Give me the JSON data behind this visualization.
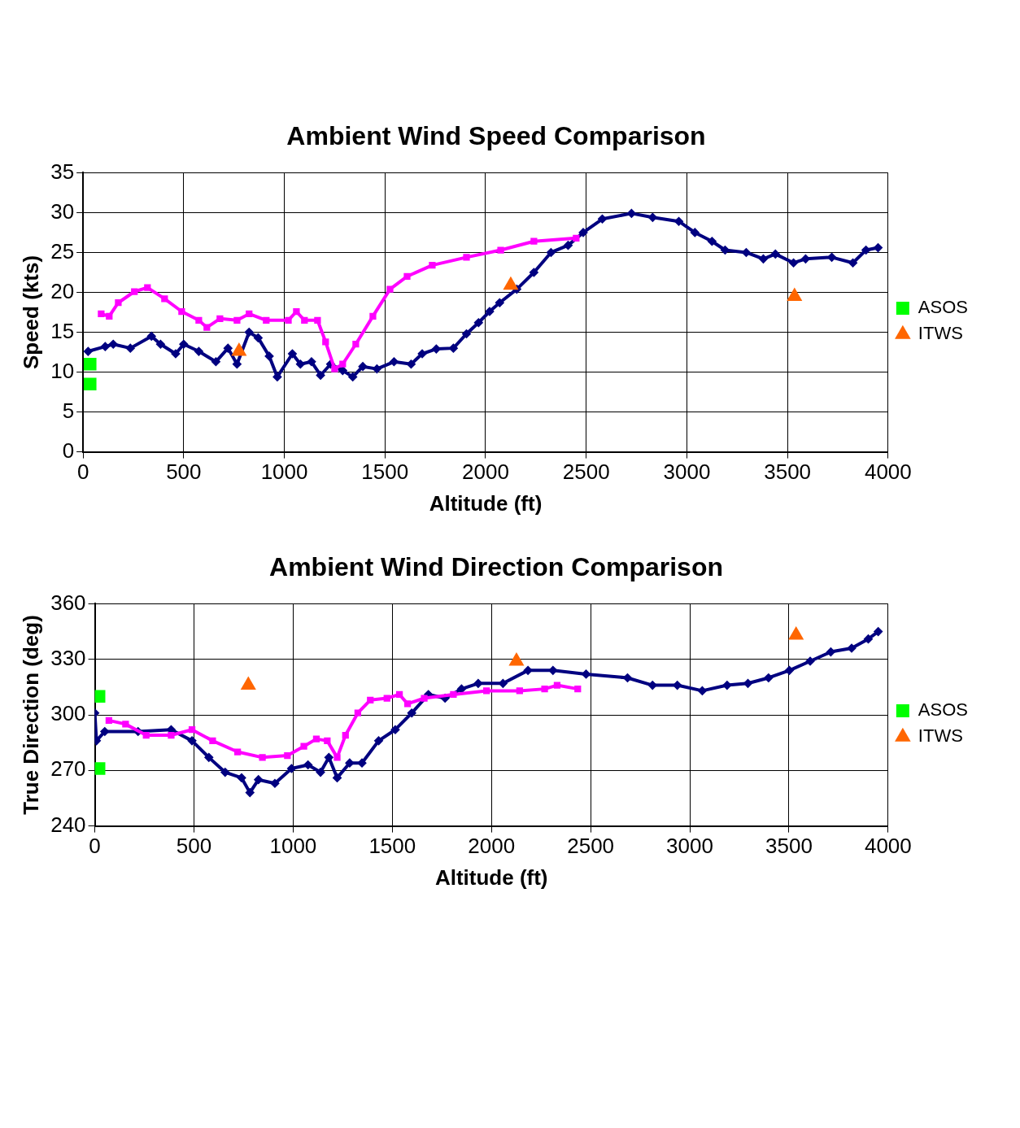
{
  "chart_data": [
    {
      "type": "line",
      "title": "Ambient Wind Speed Comparison",
      "xlabel": "Altitude (ft)",
      "ylabel": "Speed (kts)",
      "xlim": [
        0,
        4000
      ],
      "xticks": [
        0,
        500,
        1000,
        1500,
        2000,
        2500,
        3000,
        3500,
        4000
      ],
      "ylim": [
        0,
        35
      ],
      "yticks": [
        0,
        5,
        10,
        15,
        20,
        25,
        30,
        35
      ],
      "grid": true,
      "legend": "right",
      "series": [
        {
          "marker": "diamond",
          "color": "#000080",
          "x": [
            25,
            110,
            150,
            235,
            340,
            385,
            460,
            500,
            575,
            660,
            720,
            765,
            825,
            870,
            925,
            965,
            1040,
            1080,
            1135,
            1180,
            1230,
            1290,
            1340,
            1390,
            1460,
            1545,
            1630,
            1685,
            1755,
            1840,
            1905,
            1965,
            2020,
            2070,
            2155,
            2240,
            2325,
            2410,
            2485,
            2580,
            2725,
            2830,
            2960,
            3040,
            3125,
            3190,
            3295,
            3380,
            3440,
            3530,
            3590,
            3720,
            3825,
            3890,
            3950
          ],
          "values": [
            12.6,
            13.2,
            13.5,
            13,
            14.5,
            13.5,
            12.3,
            13.5,
            12.6,
            11.3,
            13,
            11,
            15,
            14.3,
            12,
            9.4,
            12.3,
            11,
            11.3,
            9.6,
            11,
            10.2,
            9.4,
            10.7,
            10.4,
            11.3,
            11,
            12.3,
            12.9,
            13,
            14.8,
            16.2,
            17.6,
            18.7,
            20.4,
            22.5,
            25,
            25.9,
            27.5,
            29.2,
            29.9,
            29.4,
            28.9,
            27.5,
            26.4,
            25.3,
            25,
            24.2,
            24.8,
            23.7,
            24.2,
            24.4,
            23.7,
            25.3,
            25.6
          ]
        },
        {
          "marker": "square",
          "color": "#ff00ff",
          "x": [
            90,
            130,
            175,
            255,
            320,
            405,
            490,
            575,
            615,
            680,
            765,
            825,
            910,
            1020,
            1060,
            1100,
            1165,
            1205,
            1250,
            1290,
            1355,
            1440,
            1525,
            1610,
            1735,
            1905,
            2075,
            2240,
            2450
          ],
          "values": [
            17.3,
            17,
            18.7,
            20.1,
            20.6,
            19.2,
            17.6,
            16.5,
            15.6,
            16.7,
            16.5,
            17.3,
            16.5,
            16.5,
            17.6,
            16.5,
            16.5,
            13.8,
            10.4,
            11,
            13.5,
            17,
            20.4,
            22,
            23.4,
            24.4,
            25.3,
            26.4,
            26.8
          ]
        },
        {
          "type": "scatter",
          "name": "ITWS",
          "marker": "triangle",
          "color": "#ff6600",
          "x": [
            775,
            2125,
            3535
          ],
          "values": [
            12.6,
            20.9,
            19.5
          ]
        },
        {
          "type": "scatter",
          "name": "ASOS",
          "marker": "square",
          "color": "#00ff00",
          "x": [
            35,
            35
          ],
          "values": [
            11,
            8.5
          ]
        }
      ]
    },
    {
      "type": "line",
      "title": "Ambient Wind Direction Comparison",
      "xlabel": "Altitude (ft)",
      "ylabel": "True Direction (deg)",
      "xlim": [
        0,
        4000
      ],
      "xticks": [
        0,
        500,
        1000,
        1500,
        2000,
        2500,
        3000,
        3500,
        4000
      ],
      "ylim": [
        240,
        360
      ],
      "yticks": [
        240,
        270,
        300,
        330,
        360
      ],
      "grid": true,
      "legend": "right",
      "series": [
        {
          "marker": "diamond",
          "color": "#000080",
          "x": [
            0,
            8,
            50,
            218,
            385,
            490,
            575,
            657,
            740,
            782,
            825,
            908,
            992,
            1075,
            1138,
            1180,
            1222,
            1285,
            1347,
            1431,
            1515,
            1598,
            1682,
            1766,
            1849,
            1933,
            2058,
            2184,
            2310,
            2477,
            2686,
            2812,
            2937,
            3063,
            3188,
            3293,
            3397,
            3502,
            3607,
            3711,
            3816,
            3900,
            3950
          ],
          "values": [
            301,
            286,
            291,
            291,
            292,
            286,
            277,
            269,
            266,
            258,
            265,
            263,
            271,
            273,
            269,
            277,
            266,
            274,
            274,
            286,
            292,
            301,
            311,
            309,
            314,
            317,
            317,
            324,
            324,
            322,
            320,
            316,
            316,
            313,
            316,
            317,
            320,
            324,
            329,
            334,
            336,
            341,
            345
          ]
        },
        {
          "marker": "square",
          "color": "#ff00ff",
          "x": [
            71,
            155,
            259,
            385,
            490,
            594,
            720,
            845,
            971,
            1054,
            1117,
            1172,
            1222,
            1264,
            1326,
            1389,
            1473,
            1536,
            1577,
            1661,
            1808,
            1975,
            2142,
            2268,
            2331,
            2435
          ],
          "values": [
            297,
            295,
            289,
            289,
            292,
            286,
            280,
            277,
            278,
            283,
            287,
            286,
            277,
            289,
            301,
            308,
            309,
            311,
            306,
            309,
            311,
            313,
            313,
            314,
            316,
            314
          ]
        },
        {
          "type": "scatter",
          "name": "ITWS",
          "marker": "triangle",
          "color": "#ff6600",
          "x": [
            774,
            2126,
            3536
          ],
          "values": [
            316,
            329,
            343
          ]
        },
        {
          "type": "scatter",
          "name": "ASOS",
          "marker": "square",
          "color": "#00ff00",
          "x": [
            21,
            21
          ],
          "values": [
            310,
            271
          ]
        }
      ]
    }
  ]
}
